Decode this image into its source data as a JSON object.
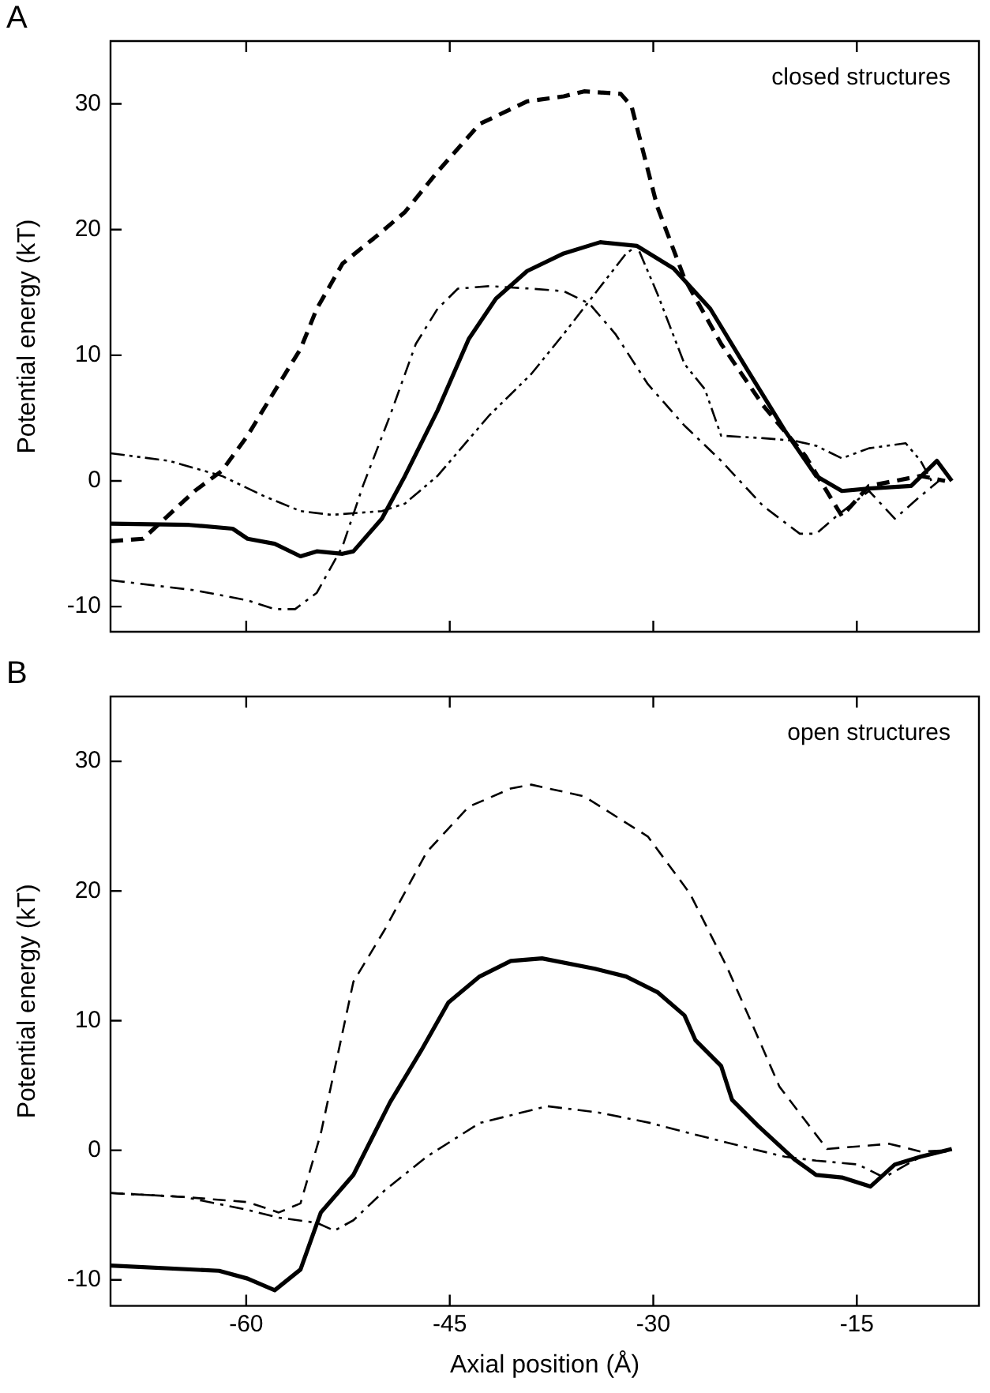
{
  "chart_data": [
    {
      "type": "line",
      "title": "A",
      "ylabel": "Potential energy (kT)",
      "annotations": [
        "closed structures"
      ],
      "xlim": [
        -70,
        -6
      ],
      "ylim": [
        -12,
        35
      ],
      "xticks": [
        -60,
        -45,
        -30,
        -15
      ],
      "yticks": [
        -10,
        0,
        10,
        20,
        30
      ],
      "tick_labels": "y",
      "grid": false,
      "legend": false,
      "marker": "none",
      "series": [
        {
          "color": "#000000",
          "line_style": "solid",
          "x": [
            -70,
            -64.2,
            -61,
            -59.9,
            -57.9,
            -56,
            -54.8,
            -52.9,
            -52.1,
            -50,
            -48.3,
            -45.9,
            -43.6,
            -41.6,
            -39.3,
            -36.6,
            -33.9,
            -31.2,
            -28.5,
            -25.8,
            -23.1,
            -20.3,
            -18,
            -16.1,
            -14.1,
            -11,
            -9.1,
            -8
          ],
          "values": [
            -3.4,
            -3.5,
            -3.8,
            -4.6,
            -5,
            -6,
            -5.6,
            -5.8,
            -5.6,
            -3,
            0.4,
            5.6,
            11.3,
            14.5,
            16.7,
            18.1,
            19,
            18.7,
            16.9,
            13.7,
            8.9,
            4,
            0.4,
            -0.8,
            -0.6,
            -0.4,
            1.6,
            0
          ]
        },
        {
          "color": "#000000",
          "line_style": "dashed",
          "x": [
            -70,
            -67.6,
            -63.8,
            -61.8,
            -59.9,
            -57.6,
            -56,
            -54.8,
            -52.9,
            -50.6,
            -48.3,
            -45.9,
            -42.8,
            -39.3,
            -36.6,
            -35.1,
            -32.4,
            -31.6,
            -29.7,
            -27.7,
            -25,
            -21.9,
            -18.8,
            -16.1,
            -14.1,
            -10.3,
            -8.5
          ],
          "values": [
            -4.8,
            -4.6,
            -0.8,
            0.8,
            3.6,
            7.7,
            10.5,
            13.7,
            17.3,
            19.3,
            21.4,
            24.6,
            28.4,
            30.2,
            30.6,
            31,
            30.8,
            29.8,
            21.8,
            16.1,
            10.9,
            6,
            2,
            -2.8,
            -0.4,
            0.4,
            0
          ]
        },
        {
          "color": "#000000",
          "line_style": "dashdot",
          "x": [
            -70,
            -63.8,
            -59.9,
            -57.9,
            -56.4,
            -54.8,
            -52.9,
            -51.4,
            -49.4,
            -47.5,
            -45.9,
            -44.4,
            -42.1,
            -39,
            -36.6,
            -34.7,
            -32.8,
            -30.4,
            -27.7,
            -25,
            -21.9,
            -19.2,
            -18,
            -16.5,
            -14.1,
            -12.2,
            -10.3,
            -8.5
          ],
          "values": [
            -7.9,
            -8.7,
            -9.5,
            -10.2,
            -10.2,
            -8.9,
            -5.2,
            -0.4,
            5.2,
            10.9,
            13.7,
            15.3,
            15.5,
            15.3,
            15.1,
            14.1,
            11.7,
            7.7,
            4.4,
            1.6,
            -2,
            -4.2,
            -4.2,
            -2.8,
            -0.8,
            -3,
            -1.2,
            0.4
          ]
        },
        {
          "color": "#000000",
          "line_style": "dashdotdot",
          "x": [
            -70,
            -65.7,
            -61.8,
            -58.7,
            -56,
            -53.7,
            -50,
            -48.3,
            -45.9,
            -42.1,
            -39,
            -36.6,
            -34.3,
            -32,
            -31.2,
            -29.7,
            -27.7,
            -26.2,
            -25,
            -21.9,
            -19.6,
            -18,
            -16.1,
            -14.1,
            -11.4,
            -10.3,
            -9.5
          ],
          "values": [
            2.2,
            1.6,
            0.4,
            -1.2,
            -2.4,
            -2.7,
            -2.4,
            -1.8,
            0.4,
            5.2,
            8.5,
            11.7,
            14.9,
            18.1,
            18.7,
            14.9,
            9.3,
            7.3,
            3.6,
            3.4,
            3.2,
            2.8,
            1.8,
            2.6,
            3,
            1.6,
            0
          ]
        }
      ]
    },
    {
      "type": "line",
      "title": "B",
      "xlabel": "Axial position (Å)",
      "ylabel": "Potential energy (kT)",
      "annotations": [
        "open structures"
      ],
      "xlim": [
        -70,
        -6
      ],
      "ylim": [
        -12,
        35
      ],
      "xticks": [
        -60,
        -45,
        -30,
        -15
      ],
      "yticks": [
        -10,
        0,
        10,
        20,
        30
      ],
      "grid": false,
      "legend": false,
      "marker": "none",
      "series": [
        {
          "color": "#000000",
          "line_style": "solid",
          "x": [
            -70,
            -62,
            -59.9,
            -57.9,
            -56,
            -54.5,
            -52.1,
            -49.4,
            -47.1,
            -45.1,
            -42.8,
            -40.5,
            -38.2,
            -34.3,
            -32,
            -29.7,
            -27.7,
            -26.9,
            -25,
            -24.2,
            -22.3,
            -19.6,
            -18,
            -16.1,
            -14,
            -12.2,
            -10.3,
            -8
          ],
          "values": [
            -8.9,
            -9.3,
            -9.9,
            -10.8,
            -9.2,
            -4.8,
            -1.9,
            3.7,
            7.7,
            11.4,
            13.4,
            14.6,
            14.8,
            14,
            13.4,
            12.2,
            10.4,
            8.5,
            6.5,
            3.9,
            1.9,
            -0.7,
            -1.9,
            -2.1,
            -2.8,
            -1.1,
            -0.5,
            0.1
          ]
        },
        {
          "color": "#000000",
          "line_style": "dashed",
          "x": [
            -70,
            -64.6,
            -59.9,
            -57.6,
            -56,
            -54.5,
            -52.1,
            -49.8,
            -46.7,
            -43.6,
            -40.5,
            -39,
            -35.1,
            -30.4,
            -27.3,
            -24.6,
            -22.7,
            -20.7,
            -17.2,
            -14.9,
            -12.6,
            -10.3,
            -8
          ],
          "values": [
            -3.3,
            -3.6,
            -4,
            -4.8,
            -4.1,
            1.3,
            13,
            17,
            23,
            26.5,
            27.9,
            28.2,
            27.3,
            24.2,
            19.8,
            14.2,
            9.7,
            4.9,
            0.1,
            0.3,
            0.5,
            -0.1,
            0
          ]
        },
        {
          "color": "#000000",
          "line_style": "dashdot",
          "x": [
            -70,
            -64.6,
            -59.9,
            -57.6,
            -54.8,
            -53.5,
            -52.1,
            -49.8,
            -46.7,
            -42.8,
            -37.8,
            -34,
            -30.2,
            -26.5,
            -22.7,
            -20.3,
            -18,
            -14.9,
            -13,
            -10.3,
            -8
          ],
          "values": [
            -3.3,
            -3.6,
            -4.6,
            -5.2,
            -5.6,
            -6.2,
            -5.4,
            -3.1,
            -0.5,
            2.1,
            3.4,
            2.9,
            2.1,
            1.1,
            0.1,
            -0.5,
            -0.8,
            -1.1,
            -2.1,
            -0.5,
            0
          ]
        }
      ]
    }
  ]
}
